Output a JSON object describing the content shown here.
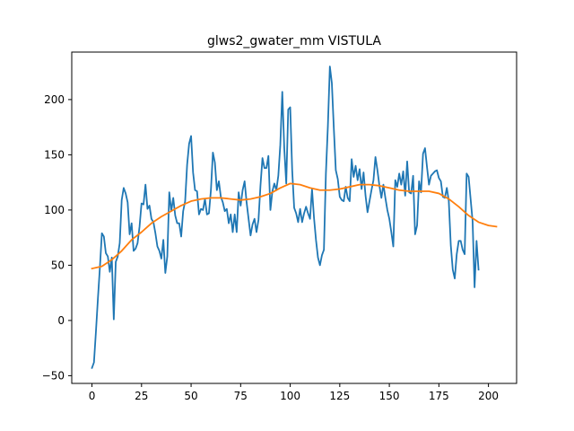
{
  "chart_data": {
    "type": "line",
    "title": "glws2_gwater_mm VISTULA",
    "xlabel": "",
    "ylabel": "",
    "xlim": [
      -10.2,
      214.2
    ],
    "ylim": [
      -57,
      243
    ],
    "xticks": [
      0,
      25,
      50,
      75,
      100,
      125,
      150,
      175,
      200
    ],
    "yticks": [
      -50,
      0,
      50,
      100,
      150,
      200
    ],
    "grid": false,
    "legend": "none",
    "series": [
      {
        "color": "#1f77b4",
        "x_start": 0,
        "x_step": 1,
        "values": [
          -43,
          -38,
          -10,
          20,
          48,
          79,
          76,
          61,
          58,
          44,
          57,
          1,
          53,
          58,
          70,
          109,
          120,
          115,
          107,
          78,
          88,
          63,
          65,
          70,
          85,
          106,
          105,
          123,
          101,
          104,
          92,
          89,
          79,
          67,
          63,
          56,
          73,
          43,
          58,
          116,
          99,
          111,
          95,
          88,
          88,
          76,
          99,
          108,
          141,
          160,
          167,
          134,
          118,
          117,
          96,
          101,
          100,
          110,
          96,
          97,
          118,
          152,
          143,
          118,
          126,
          112,
          107,
          99,
          101,
          88,
          96,
          80,
          96,
          80,
          116,
          104,
          118,
          126,
          107,
          92,
          77,
          87,
          92,
          80,
          91,
          122,
          147,
          138,
          138,
          149,
          100,
          117,
          124,
          118,
          131,
          159,
          207,
          156,
          124,
          191,
          193,
          136,
          102,
          97,
          89,
          101,
          89,
          97,
          103,
          97,
          92,
          119,
          93,
          73,
          57,
          50,
          59,
          64,
          133,
          176,
          230,
          215,
          174,
          136,
          128,
          112,
          109,
          108,
          121,
          111,
          108,
          146,
          130,
          140,
          127,
          137,
          119,
          134,
          113,
          98,
          108,
          118,
          127,
          148,
          136,
          122,
          111,
          123,
          111,
          100,
          92,
          80,
          67,
          127,
          121,
          133,
          123,
          135,
          113,
          144,
          116,
          115,
          131,
          78,
          86,
          126,
          116,
          151,
          156,
          139,
          123,
          131,
          133,
          135,
          136,
          129,
          126,
          112,
          111,
          120,
          108,
          68,
          46,
          38,
          60,
          72,
          72,
          64,
          60,
          133,
          130,
          110,
          90,
          30,
          72,
          46
        ]
      },
      {
        "color": "#ff7f0e",
        "points": [
          [
            0,
            47
          ],
          [
            5,
            49
          ],
          [
            10,
            55
          ],
          [
            15,
            63
          ],
          [
            20,
            73
          ],
          [
            25,
            80
          ],
          [
            30,
            88
          ],
          [
            35,
            94
          ],
          [
            40,
            99
          ],
          [
            45,
            104
          ],
          [
            50,
            108
          ],
          [
            55,
            110
          ],
          [
            60,
            111
          ],
          [
            65,
            111
          ],
          [
            70,
            110
          ],
          [
            75,
            109
          ],
          [
            80,
            110
          ],
          [
            85,
            112
          ],
          [
            90,
            115
          ],
          [
            95,
            120
          ],
          [
            100,
            124
          ],
          [
            105,
            123
          ],
          [
            110,
            120
          ],
          [
            115,
            118
          ],
          [
            120,
            118
          ],
          [
            125,
            119
          ],
          [
            130,
            121
          ],
          [
            135,
            123
          ],
          [
            140,
            123
          ],
          [
            145,
            122
          ],
          [
            150,
            120
          ],
          [
            155,
            118
          ],
          [
            160,
            117
          ],
          [
            165,
            117
          ],
          [
            170,
            117
          ],
          [
            175,
            115
          ],
          [
            180,
            110
          ],
          [
            185,
            103
          ],
          [
            190,
            95
          ],
          [
            195,
            89
          ],
          [
            200,
            86
          ],
          [
            204,
            85
          ]
        ]
      }
    ]
  }
}
